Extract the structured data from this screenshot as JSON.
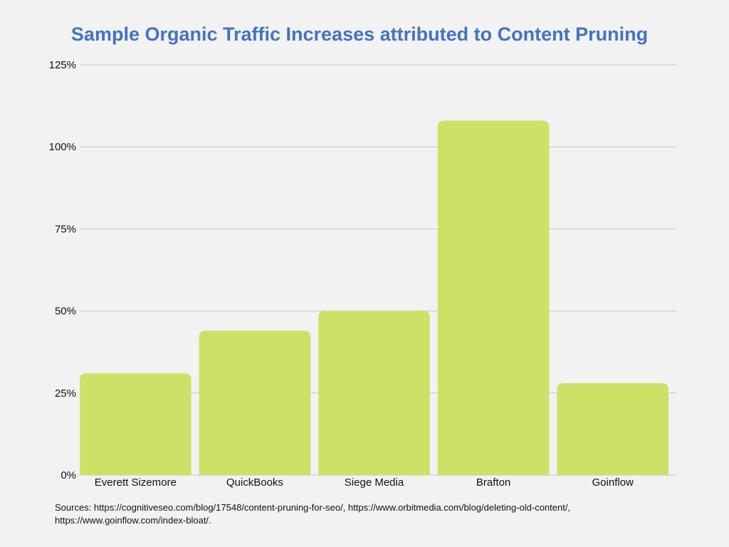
{
  "chart_data": {
    "type": "bar",
    "title": "Sample Organic Traffic Increases attributed to Content Pruning",
    "categories": [
      "Everett Sizemore",
      "QuickBooks",
      "Siege Media",
      "Brafton",
      "Goinflow"
    ],
    "values": [
      31,
      44,
      50,
      108,
      28
    ],
    "ylim": [
      0,
      125
    ],
    "yticks": [
      0,
      25,
      50,
      75,
      100,
      125
    ],
    "ytick_labels": [
      "0%",
      "25%",
      "50%",
      "75%",
      "100%",
      "125%"
    ],
    "xlabel": "",
    "ylabel": "",
    "grid": true,
    "legend": "none",
    "bar_color": "#cce266",
    "title_color": "#4472c4"
  },
  "sources": {
    "line1": "Sources: https://cognitiveseo.com/blog/17548/content-pruning-for-seo/, https://www.orbitmedia.com/blog/deleting-old-content/,",
    "line2": "https://www.goinflow.com/index-bloat/."
  }
}
